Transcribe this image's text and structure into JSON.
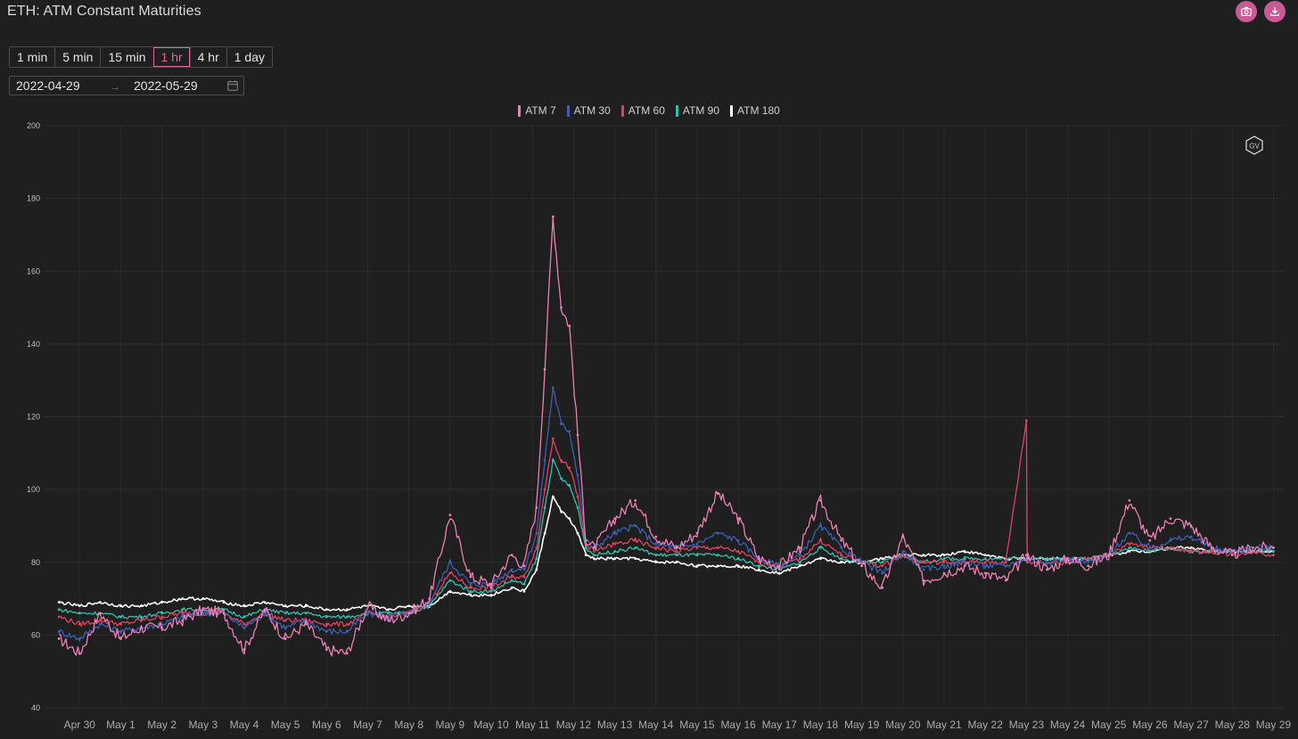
{
  "header": {
    "title": "ETH: ATM Constant Maturities"
  },
  "actions": {
    "screenshot_icon": "camera-icon",
    "download_icon": "download-icon"
  },
  "intervals": [
    {
      "label": "1 min",
      "active": false
    },
    {
      "label": "5 min",
      "active": false
    },
    {
      "label": "15 min",
      "active": false
    },
    {
      "label": "1 hr",
      "active": true
    },
    {
      "label": "4 hr",
      "active": false
    },
    {
      "label": "1 day",
      "active": false
    }
  ],
  "date_range": {
    "start": "2022-04-29",
    "separator": "→",
    "end": "2022-05-29",
    "icon": "calendar-icon"
  },
  "watermark": {
    "text": "GV"
  },
  "chart_data": {
    "type": "line",
    "title": "",
    "xlabel": "",
    "ylabel": "",
    "ylim": [
      40,
      200
    ],
    "yticks": [
      40,
      60,
      80,
      100,
      120,
      140,
      160,
      180,
      200
    ],
    "x_ticks": [
      "Apr 30",
      "May 1",
      "May 2",
      "May 3",
      "May 4",
      "May 5",
      "May 6",
      "May 7",
      "May 8",
      "May 9",
      "May 10",
      "May 11",
      "May 12",
      "May 13",
      "May 14",
      "May 15",
      "May 16",
      "May 17",
      "May 18",
      "May 19",
      "May 20",
      "May 21",
      "May 22",
      "May 23",
      "May 24",
      "May 25",
      "May 26",
      "May 27",
      "May 28",
      "May 29"
    ],
    "grid": true,
    "legend_position": "top-center",
    "series": [
      {
        "name": "ATM 7",
        "color": "#ec7fb6",
        "x": [
          0,
          0.5,
          1,
          1.5,
          2,
          2.5,
          3,
          3.5,
          4,
          4.5,
          5,
          5.5,
          6,
          6.5,
          7,
          7.5,
          8,
          8.5,
          9,
          9.5,
          10,
          10.5,
          11,
          11.3,
          11.6,
          11.8,
          12,
          12.2,
          12.4,
          12.6,
          12.8,
          13,
          13.5,
          14,
          14.5,
          15,
          15.5,
          16,
          16.5,
          17,
          17.5,
          18,
          18.5,
          19,
          19.5,
          20,
          20.5,
          21,
          21.5,
          22,
          22.5,
          23,
          23.5,
          24,
          24.5,
          25,
          25.5,
          26,
          26.5,
          27,
          27.5,
          28,
          28.5,
          29,
          29.5
        ],
        "y": [
          59,
          55,
          66,
          59,
          62,
          62,
          64,
          67,
          66,
          56,
          67,
          59,
          63,
          56,
          55,
          68,
          64,
          66,
          70,
          93,
          76,
          74,
          82,
          79,
          95,
          133,
          175,
          150,
          145,
          115,
          86,
          84,
          92,
          97,
          87,
          84,
          88,
          99,
          92,
          81,
          79,
          84,
          97,
          86,
          79,
          73,
          87,
          75,
          77,
          79,
          77,
          75,
          82,
          78,
          81,
          79,
          82,
          97,
          86,
          92,
          90,
          84,
          82,
          84,
          84
        ]
      },
      {
        "name": "ATM 30",
        "color": "#3a5fb4",
        "x": [
          0,
          0.5,
          1,
          1.5,
          2,
          2.5,
          3,
          3.5,
          4,
          4.5,
          5,
          5.5,
          6,
          6.5,
          7,
          7.5,
          8,
          8.5,
          9,
          9.5,
          10,
          10.5,
          11,
          11.3,
          11.6,
          11.8,
          12,
          12.2,
          12.4,
          12.6,
          12.8,
          13,
          13.5,
          14,
          14.5,
          15,
          15.5,
          16,
          16.5,
          17,
          17.5,
          18,
          18.5,
          19,
          19.5,
          20,
          20.5,
          21,
          21.5,
          22,
          22.5,
          23,
          23.5,
          24,
          24.5,
          25,
          25.5,
          26,
          26.5,
          27,
          27.5,
          28,
          28.5,
          29,
          29.5
        ],
        "y": [
          61,
          59,
          63,
          61,
          62,
          63,
          65,
          66,
          66,
          62,
          66,
          62,
          64,
          61,
          61,
          66,
          65,
          66,
          69,
          80,
          74,
          74,
          78,
          78,
          88,
          108,
          128,
          118,
          116,
          104,
          86,
          84,
          88,
          90,
          85,
          84,
          85,
          88,
          86,
          81,
          79,
          82,
          90,
          84,
          80,
          77,
          83,
          78,
          79,
          80,
          79,
          79,
          81,
          80,
          81,
          80,
          82,
          88,
          84,
          86,
          87,
          84,
          83,
          84,
          84
        ]
      },
      {
        "name": "ATM 60",
        "color": "#e0415f",
        "x": [
          0,
          0.5,
          1,
          1.5,
          2,
          2.5,
          3,
          3.5,
          4,
          4.5,
          5,
          5.5,
          6,
          6.5,
          7,
          7.5,
          8,
          8.5,
          9,
          9.5,
          10,
          10.5,
          11,
          11.3,
          11.6,
          11.8,
          12,
          12.2,
          12.4,
          12.6,
          12.8,
          13,
          13.5,
          14,
          14.5,
          15,
          15.5,
          16,
          16.5,
          17,
          17.5,
          18,
          18.5,
          19,
          19.5,
          20,
          20.5,
          21,
          21.5,
          22,
          22.5,
          23,
          23.5,
          23.52,
          23.54,
          24,
          24.5,
          25,
          25.5,
          26,
          26.5,
          27,
          27.5,
          28,
          28.5,
          29,
          29.5
        ],
        "y": [
          65,
          63,
          64,
          63,
          64,
          65,
          66,
          66,
          66,
          63,
          66,
          64,
          64,
          63,
          63,
          66,
          65,
          66,
          69,
          77,
          73,
          73,
          76,
          76,
          84,
          100,
          114,
          108,
          106,
          98,
          85,
          83,
          85,
          86,
          84,
          83,
          84,
          84,
          83,
          80,
          79,
          81,
          86,
          82,
          80,
          79,
          82,
          80,
          80,
          80,
          80,
          80,
          119,
          80,
          80,
          80,
          80,
          81,
          82,
          85,
          84,
          84,
          83,
          83,
          82,
          83,
          82
        ]
      },
      {
        "name": "ATM 90",
        "color": "#2fc1b0",
        "x": [
          0,
          0.5,
          1,
          1.5,
          2,
          2.5,
          3,
          3.5,
          4,
          4.5,
          5,
          5.5,
          6,
          6.5,
          7,
          7.5,
          8,
          8.5,
          9,
          9.5,
          10,
          10.5,
          11,
          11.3,
          11.6,
          11.8,
          12,
          12.2,
          12.4,
          12.6,
          12.8,
          13,
          13.5,
          14,
          14.5,
          15,
          15.5,
          16,
          16.5,
          17,
          17.5,
          18,
          18.5,
          19,
          19.5,
          20,
          20.5,
          21,
          21.5,
          22,
          22.5,
          23,
          23.5,
          24,
          24.5,
          25,
          25.5,
          26,
          26.5,
          27,
          27.5,
          28,
          28.5,
          29,
          29.5
        ],
        "y": [
          67,
          66,
          66,
          65,
          65,
          66,
          67,
          67,
          67,
          65,
          67,
          66,
          66,
          65,
          65,
          66,
          66,
          66,
          68,
          75,
          72,
          72,
          75,
          74,
          81,
          95,
          108,
          103,
          101,
          95,
          84,
          82,
          83,
          84,
          82,
          82,
          82,
          82,
          81,
          79,
          78,
          80,
          84,
          81,
          80,
          80,
          82,
          80,
          81,
          81,
          81,
          81,
          81,
          81,
          81,
          81,
          82,
          84,
          83,
          84,
          83,
          83,
          83,
          83,
          83
        ]
      },
      {
        "name": "ATM 180",
        "color": "#ffffff",
        "x": [
          0,
          0.5,
          1,
          1.5,
          2,
          2.5,
          3,
          3.5,
          4,
          4.5,
          5,
          5.5,
          6,
          6.5,
          7,
          7.5,
          8,
          8.5,
          9,
          9.5,
          10,
          10.5,
          11,
          11.3,
          11.6,
          11.8,
          12,
          12.2,
          12.4,
          12.6,
          12.8,
          13,
          13.5,
          14,
          14.5,
          15,
          15.5,
          16,
          16.5,
          17,
          17.5,
          18,
          18.5,
          19,
          19.5,
          20,
          20.5,
          21,
          21.5,
          22,
          22.5,
          23,
          23.5,
          24,
          24.5,
          25,
          25.5,
          26,
          26.5,
          27,
          27.5,
          28,
          28.5,
          29,
          29.5
        ],
        "y": [
          69,
          68,
          69,
          68,
          68,
          69,
          70,
          70,
          69,
          68,
          69,
          68,
          68,
          67,
          67,
          68,
          67,
          68,
          68,
          72,
          71,
          71,
          73,
          72,
          78,
          88,
          98,
          94,
          92,
          88,
          82,
          81,
          81,
          81,
          80,
          80,
          79,
          79,
          79,
          78,
          77,
          79,
          81,
          80,
          80,
          81,
          82,
          82,
          82,
          83,
          82,
          81,
          81,
          81,
          81,
          81,
          82,
          83,
          83,
          84,
          84,
          83,
          83,
          83,
          83
        ]
      }
    ]
  }
}
